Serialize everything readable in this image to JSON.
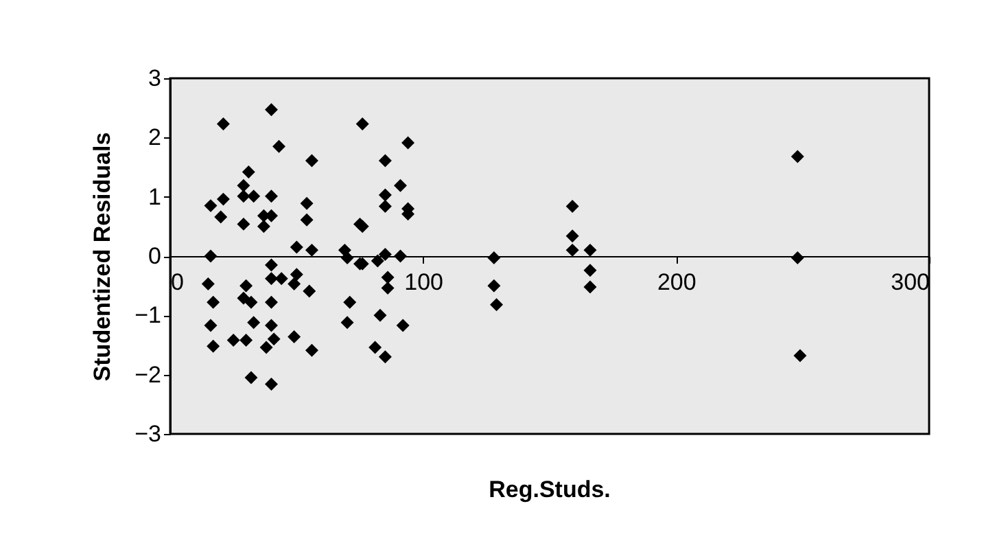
{
  "chart_data": {
    "type": "scatter",
    "xlabel": "Reg.Studs.",
    "ylabel": "Studentized Residuals",
    "xlim": [
      0,
      300
    ],
    "xticks": [
      0,
      100,
      200,
      300
    ],
    "ylim": [
      -3,
      3
    ],
    "yticks": [
      -3,
      -2,
      -1,
      0,
      1,
      2,
      3
    ],
    "grid": false,
    "legend": false,
    "marker": "diamond",
    "series": [
      {
        "color": "#000000",
        "x": [
          40,
          21,
          43,
          31,
          56,
          29,
          16,
          21,
          29,
          33,
          40,
          54,
          20,
          29,
          37,
          40,
          54,
          37,
          16,
          50,
          56,
          40,
          50,
          15,
          30,
          40,
          44,
          49,
          29,
          17,
          32,
          40,
          55,
          16,
          33,
          40,
          49,
          41,
          25,
          30,
          17,
          38,
          56,
          32,
          40,
          76,
          94,
          85,
          91,
          85,
          85,
          94,
          94,
          76,
          76,
          82,
          85,
          91,
          86,
          86,
          83,
          92,
          85,
          128,
          128,
          129,
          159,
          159,
          159,
          166,
          166,
          166,
          69,
          70,
          75,
          71,
          70,
          75,
          81,
          248,
          248,
          249
        ],
        "values": [
          2.47,
          2.23,
          1.85,
          1.42,
          1.61,
          1.19,
          0.85,
          0.96,
          1.01,
          1.01,
          1.01,
          0.89,
          0.66,
          0.54,
          0.68,
          0.68,
          0.61,
          0.5,
          0,
          0.15,
          0.1,
          -0.15,
          -0.31,
          -0.47,
          -0.5,
          -0.38,
          -0.38,
          -0.47,
          -0.71,
          -0.78,
          -0.78,
          -0.78,
          -0.59,
          -1.17,
          -1.12,
          -1.17,
          -1.36,
          -1.4,
          -1.42,
          -1.42,
          -1.52,
          -1.54,
          -1.59,
          -2.05,
          -2.16,
          2.23,
          1.91,
          1.61,
          1.19,
          1.03,
          0.84,
          0.8,
          0.71,
          0.5,
          -0.13,
          -0.08,
          0.03,
          0,
          -0.36,
          -0.54,
          -1.0,
          -1.17,
          -1.7,
          -0.03,
          -0.5,
          -0.82,
          0.84,
          0.34,
          0.1,
          0.1,
          -0.24,
          -0.52,
          0.1,
          -0.03,
          -0.13,
          -0.78,
          -1.12,
          0.54,
          -1.54,
          1.68,
          -0.03,
          -1.68
        ]
      }
    ]
  }
}
